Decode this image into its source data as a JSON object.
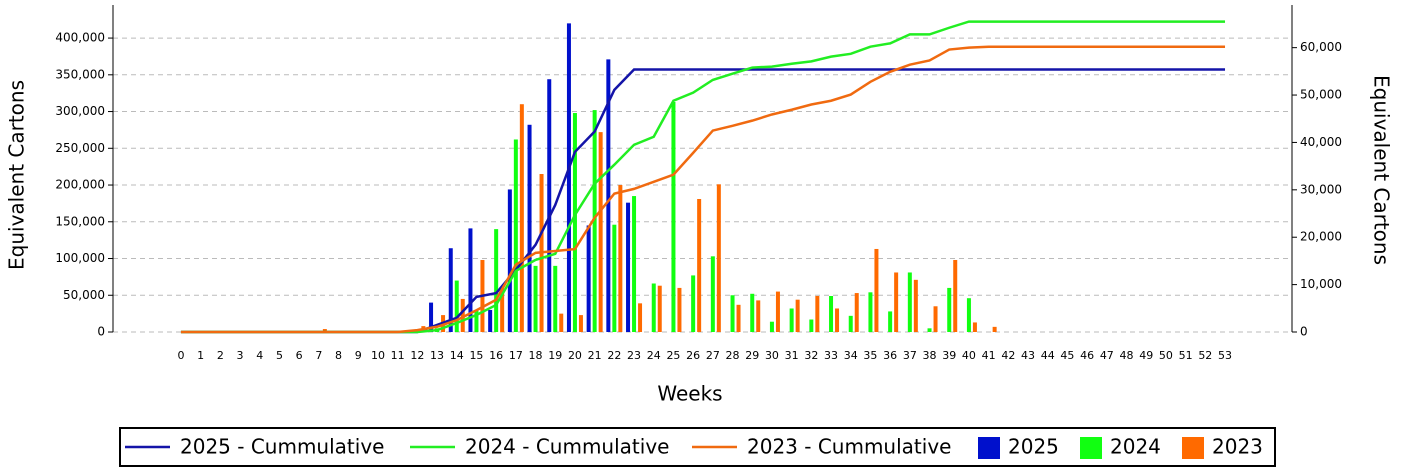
{
  "chart_data": {
    "type": "bar",
    "xlabel": "Weeks",
    "ylabel": "Equivalent Cartons",
    "y2label": "Equivalent Cartons",
    "x": [
      0,
      1,
      2,
      3,
      4,
      5,
      6,
      7,
      8,
      9,
      10,
      11,
      12,
      13,
      14,
      15,
      16,
      17,
      18,
      19,
      20,
      21,
      22,
      23,
      24,
      25,
      26,
      27,
      28,
      29,
      30,
      31,
      32,
      33,
      34,
      35,
      36,
      37,
      38,
      39,
      40,
      41,
      42,
      43,
      44,
      45,
      46,
      47,
      48,
      49,
      50,
      51,
      52,
      53
    ],
    "xlim": [
      -3.45,
      56.4
    ],
    "ylim": [
      0,
      445000
    ],
    "yticks": [
      {
        "value": 0,
        "label": "0"
      },
      {
        "value": 50000,
        "label": "50,000"
      },
      {
        "value": 100000,
        "label": "100,000"
      },
      {
        "value": 150000,
        "label": "150,000"
      },
      {
        "value": 200000,
        "label": "200,000"
      },
      {
        "value": 250000,
        "label": "250,000"
      },
      {
        "value": 300000,
        "label": "300,000"
      },
      {
        "value": 350000,
        "label": "350,000"
      },
      {
        "value": 400000,
        "label": "400,000"
      }
    ],
    "y2lim": [
      0,
      69000
    ],
    "y2ticks": [
      {
        "value": 0,
        "label": "0"
      },
      {
        "value": 10000,
        "label": "10,000"
      },
      {
        "value": 20000,
        "label": "20,000"
      },
      {
        "value": 30000,
        "label": "30,000"
      },
      {
        "value": 40000,
        "label": "40,000"
      },
      {
        "value": 50000,
        "label": "50,000"
      },
      {
        "value": 60000,
        "label": "60,000"
      }
    ],
    "grid": true,
    "legend": "bottom",
    "series": [
      {
        "name": "2025 - Cummulative",
        "kind": "line",
        "axis": "y2",
        "color": "#1414a8",
        "values": [
          0,
          0,
          0,
          0,
          0,
          0,
          0,
          0,
          0,
          0,
          0,
          0,
          0,
          1500,
          3000,
          7400,
          8200,
          13100,
          18400,
          26800,
          38000,
          42300,
          51100,
          55400,
          55400,
          55400,
          55400,
          55400,
          55400,
          55400,
          55400,
          55400,
          55400,
          55400,
          55400,
          55400,
          55400,
          55400,
          55400,
          55400,
          55400,
          55400,
          55400,
          55400,
          55400,
          55400,
          55400,
          55400,
          55400,
          55400,
          55400,
          55400,
          55400,
          55400
        ]
      },
      {
        "name": "2024 - Cummulative",
        "kind": "line",
        "axis": "y2",
        "color": "#22ee22",
        "values": [
          0,
          0,
          0,
          0,
          0,
          0,
          0,
          0,
          0,
          0,
          0,
          0,
          0,
          400,
          1900,
          3600,
          5700,
          12900,
          15200,
          16500,
          24700,
          31300,
          35300,
          39500,
          41200,
          48800,
          50500,
          53200,
          54500,
          55800,
          56000,
          56600,
          57100,
          58100,
          58700,
          60200,
          60900,
          62800,
          62800,
          64200,
          65500,
          65500,
          65500,
          65500,
          65500,
          65500,
          65500,
          65500,
          65500,
          65500,
          65500,
          65500,
          65500,
          65500
        ]
      },
      {
        "name": "2023 - Cummulative",
        "kind": "line",
        "axis": "y2",
        "color": "#f06a10",
        "values": [
          0,
          0,
          0,
          0,
          0,
          0,
          0,
          0,
          0,
          0,
          0,
          0,
          400,
          1100,
          2500,
          4600,
          6800,
          14200,
          16700,
          17100,
          17500,
          24100,
          29200,
          30200,
          31700,
          33200,
          37800,
          42500,
          43500,
          44600,
          45900,
          46900,
          48000,
          48800,
          50100,
          52800,
          54900,
          56400,
          57300,
          59600,
          60000,
          60200,
          60200,
          60200,
          60200,
          60200,
          60200,
          60200,
          60200,
          60200,
          60200,
          60200,
          60200,
          60200
        ]
      },
      {
        "name": "2025",
        "kind": "bar",
        "color": "#0010cc",
        "values": [
          0,
          0,
          0,
          0,
          0,
          0,
          0,
          0,
          0,
          0,
          0,
          0,
          0,
          40000,
          114000,
          141000,
          30000,
          194000,
          282000,
          344000,
          420000,
          145000,
          371000,
          176000,
          0,
          0,
          0,
          0,
          0,
          0,
          0,
          0,
          0,
          0,
          0,
          0,
          0,
          0,
          0,
          0,
          0,
          0,
          0,
          0,
          0,
          0,
          0,
          0,
          0,
          0,
          0,
          0,
          0,
          0
        ]
      },
      {
        "name": "2024",
        "kind": "bar",
        "color": "#11ff11",
        "values": [
          0,
          0,
          0,
          0,
          0,
          0,
          0,
          0,
          0,
          0,
          0,
          0,
          3000,
          5000,
          70000,
          30000,
          140000,
          262000,
          90000,
          90000,
          298000,
          302000,
          146000,
          185000,
          66000,
          313000,
          77000,
          103000,
          50000,
          52000,
          14000,
          32000,
          17000,
          49000,
          22000,
          54000,
          28000,
          81000,
          5000,
          60000,
          46000,
          0,
          0,
          0,
          0,
          0,
          0,
          0,
          0,
          0,
          0,
          0,
          0,
          0
        ]
      },
      {
        "name": "2023",
        "kind": "bar",
        "color": "#ff6a00",
        "values": [
          0,
          0,
          0,
          0,
          0,
          0,
          0,
          4000,
          0,
          0,
          0,
          0,
          8000,
          23000,
          45000,
          98000,
          60000,
          310000,
          215000,
          25000,
          23000,
          272000,
          200000,
          39000,
          63000,
          60000,
          181000,
          201000,
          37000,
          43000,
          55000,
          44000,
          49000,
          32000,
          53000,
          113000,
          81000,
          71000,
          35000,
          98000,
          13000,
          7000,
          0,
          0,
          0,
          0,
          0,
          0,
          0,
          0,
          0,
          0,
          0,
          0
        ]
      }
    ]
  }
}
